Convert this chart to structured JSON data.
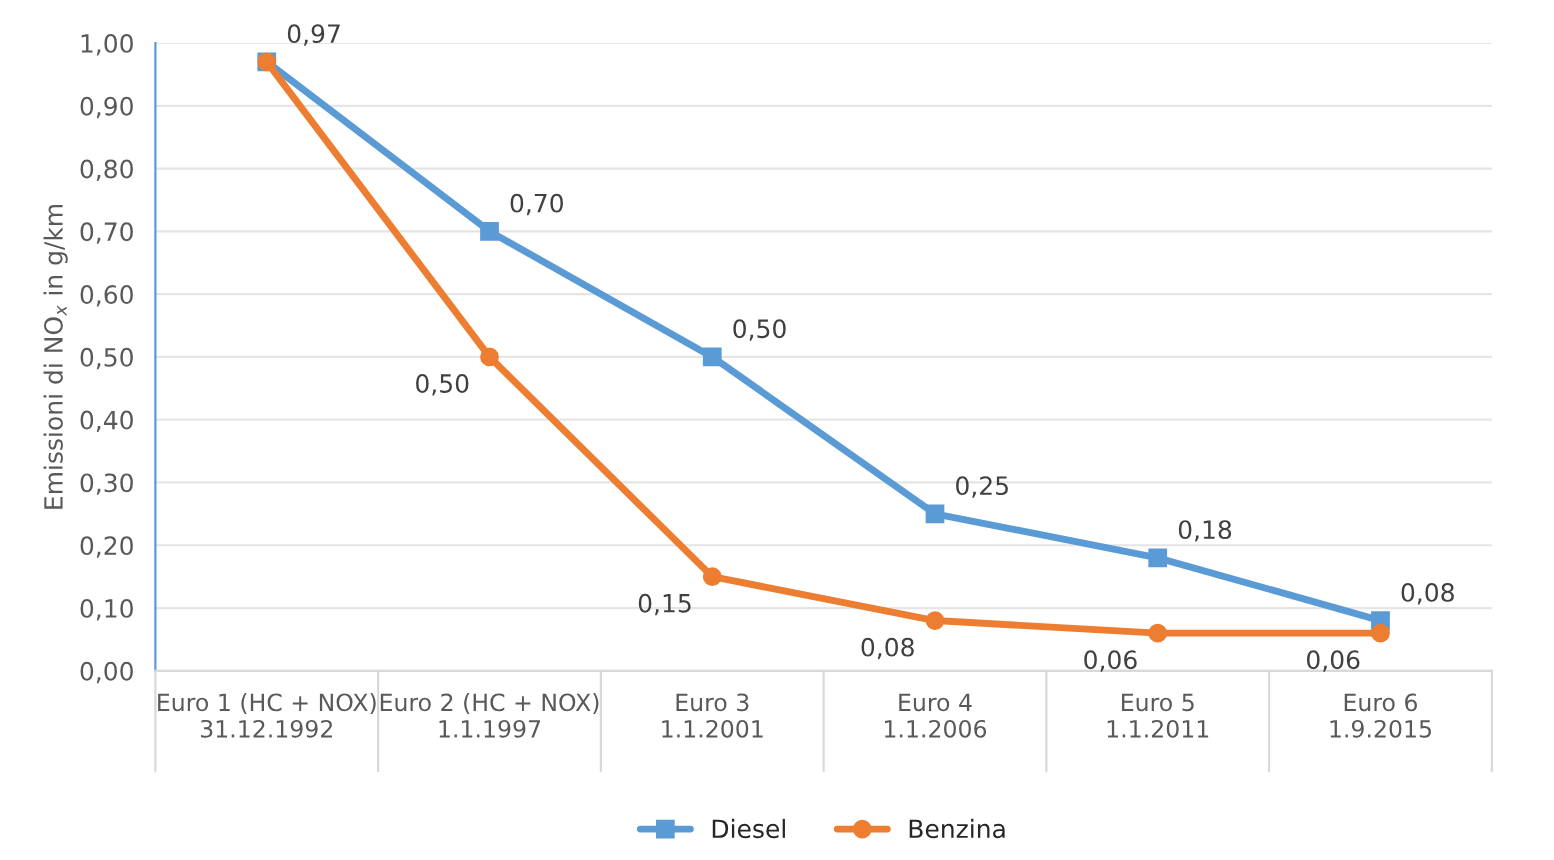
{
  "chart_data": {
    "type": "line",
    "ylabel": "Emissioni di NO$_{x}$ in g/km",
    "categories": [
      "Euro 1 (HC + NOX)\n31.12.1992",
      "Euro 2 (HC + NOX)\n1.1.1997",
      "Euro 3\n1.1.2001",
      "Euro 4\n1.1.2006",
      "Euro 5\n1.1.2011",
      "Euro 6\n1.9.2015"
    ],
    "series": [
      {
        "name": "Diesel",
        "color": "#5b9bd5",
        "marker": "square",
        "values": [
          0.97,
          0.7,
          0.5,
          0.25,
          0.18,
          0.08
        ],
        "value_labels": [
          "0,97",
          "0,70",
          "0,50",
          "0,25",
          "0,18",
          "0,08"
        ]
      },
      {
        "name": "Benzina",
        "color": "#ed7d31",
        "marker": "circle",
        "values": [
          0.97,
          0.5,
          0.15,
          0.08,
          0.06,
          0.06
        ],
        "value_labels": [
          null,
          "0,50",
          "0,15",
          "0,08",
          "0,06",
          "0,06"
        ]
      }
    ],
    "ylim": [
      0,
      1
    ],
    "yticks": [
      {
        "value": 0,
        "label": "0,00"
      },
      {
        "value": 0.1,
        "label": "0,10"
      },
      {
        "value": 0.2,
        "label": "0,20"
      },
      {
        "value": 0.3,
        "label": "0,30"
      },
      {
        "value": 0.4,
        "label": "0,40"
      },
      {
        "value": 0.5,
        "label": "0,50"
      },
      {
        "value": 0.6,
        "label": "0,60"
      },
      {
        "value": 0.7,
        "label": "0,70"
      },
      {
        "value": 0.8,
        "label": "0,80"
      },
      {
        "value": 0.9,
        "label": "0,90"
      },
      {
        "value": 1.0,
        "label": "1,00"
      }
    ],
    "grid": "y",
    "legend": "bottom"
  }
}
